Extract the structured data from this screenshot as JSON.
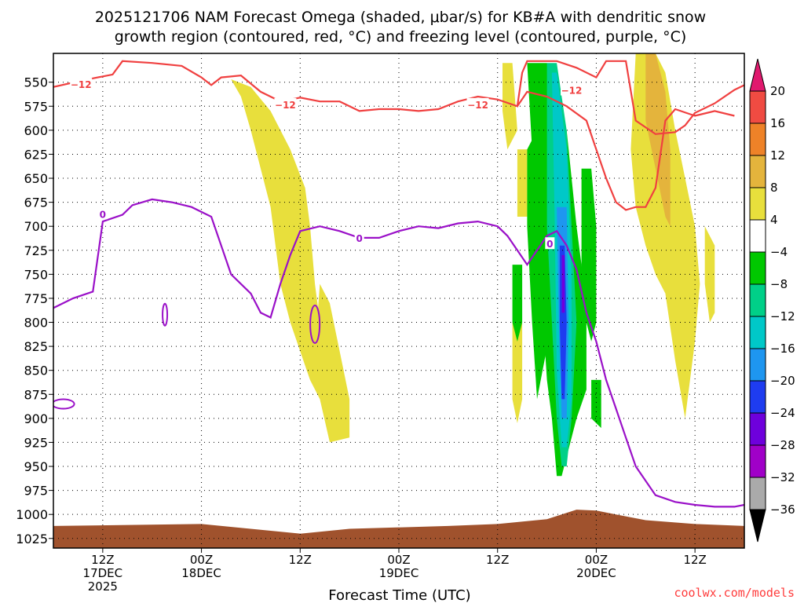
{
  "chart_data": {
    "type": "heatmap",
    "title_lines": [
      "2025121706 NAM Forecast Omega (shaded, μbar/s) for KB#A with dendritic snow",
      "growth region (contoured, red, °C) and freezing level (contoured, purple, °C)"
    ],
    "xlabel": "Forecast Time (UTC)",
    "credit": "coolwx.com/models",
    "xlim_hours": [
      -5,
      65
    ],
    "x_ticks": [
      {
        "h": 0,
        "lines": [
          "12Z",
          "17DEC",
          "2025"
        ]
      },
      {
        "h": 10,
        "lines": [
          "00Z",
          "18DEC"
        ]
      },
      {
        "h": 20,
        "lines": [
          "12Z"
        ]
      },
      {
        "h": 30,
        "lines": [
          "00Z",
          "19DEC"
        ]
      },
      {
        "h": 40,
        "lines": [
          "12Z"
        ]
      },
      {
        "h": 50,
        "lines": [
          "00Z",
          "20DEC"
        ]
      },
      {
        "h": 60,
        "lines": [
          "12Z"
        ]
      }
    ],
    "y_ticks_hpa": [
      550,
      575,
      600,
      625,
      650,
      675,
      700,
      725,
      750,
      775,
      800,
      825,
      850,
      875,
      900,
      925,
      950,
      975,
      1000,
      1025
    ],
    "ylim_hpa": [
      520,
      1035
    ],
    "colorbar": {
      "labels": [
        "20",
        "16",
        "12",
        "8",
        "4",
        "−4",
        "−8",
        "−12",
        "−16",
        "−20",
        "−24",
        "−28",
        "−32",
        "−36"
      ],
      "colors": [
        "#e0196e",
        "#f04b42",
        "#ee8228",
        "#e4b43c",
        "#e8df3c",
        "#ffffff",
        "#00c800",
        "#00d088",
        "#00c8c8",
        "#1e96f0",
        "#1e3cf0",
        "#6e00dc",
        "#a000c8",
        "#aaaaaa",
        "#000000"
      ]
    },
    "contour_labels": {
      "dgz": "−12",
      "freezing": "0"
    },
    "dgz_minus12_upper": [
      [
        -5,
        555
      ],
      [
        -2,
        548
      ],
      [
        1,
        542
      ],
      [
        2,
        528
      ],
      [
        5,
        530
      ],
      [
        8,
        533
      ],
      [
        10,
        545
      ],
      [
        11,
        553
      ],
      [
        12,
        545
      ],
      [
        14,
        543
      ],
      [
        16,
        560
      ],
      [
        18,
        570
      ],
      [
        20,
        566
      ],
      [
        22,
        570
      ],
      [
        24,
        570
      ],
      [
        26,
        580
      ],
      [
        28,
        578
      ],
      [
        30,
        578
      ],
      [
        32,
        580
      ],
      [
        34,
        578
      ],
      [
        36,
        570
      ],
      [
        38,
        565
      ],
      [
        40,
        568
      ],
      [
        42,
        575
      ],
      [
        42.5,
        540
      ],
      [
        43,
        528
      ],
      [
        46,
        528
      ],
      [
        48,
        535
      ],
      [
        50,
        545
      ],
      [
        51,
        528
      ],
      [
        53,
        528
      ],
      [
        54,
        590
      ],
      [
        56,
        604
      ],
      [
        58,
        602
      ],
      [
        59,
        595
      ],
      [
        60,
        582
      ],
      [
        62,
        572
      ],
      [
        64,
        558
      ],
      [
        65,
        553
      ]
    ],
    "dgz_minus12_lower": [
      [
        42,
        575
      ],
      [
        43,
        560
      ],
      [
        45,
        565
      ],
      [
        47,
        575
      ],
      [
        49,
        590
      ],
      [
        50,
        620
      ],
      [
        51,
        650
      ],
      [
        52,
        675
      ],
      [
        53,
        683
      ],
      [
        54,
        680
      ],
      [
        55,
        680
      ],
      [
        56,
        660
      ],
      [
        57,
        590
      ],
      [
        58,
        578
      ],
      [
        60,
        585
      ],
      [
        62,
        580
      ],
      [
        64,
        585
      ]
    ],
    "freezing_level": [
      [
        -5,
        785
      ],
      [
        -3,
        775
      ],
      [
        -1,
        768
      ],
      [
        0,
        695
      ],
      [
        2,
        688
      ],
      [
        3,
        678
      ],
      [
        5,
        672
      ],
      [
        7,
        675
      ],
      [
        9,
        680
      ],
      [
        11,
        690
      ],
      [
        12,
        720
      ],
      [
        13,
        750
      ],
      [
        15,
        770
      ],
      [
        16,
        790
      ],
      [
        17,
        795
      ],
      [
        18,
        760
      ],
      [
        19,
        730
      ],
      [
        20,
        705
      ],
      [
        22,
        700
      ],
      [
        24,
        705
      ],
      [
        26,
        712
      ],
      [
        28,
        712
      ],
      [
        30,
        705
      ],
      [
        32,
        700
      ],
      [
        34,
        702
      ],
      [
        36,
        697
      ],
      [
        38,
        695
      ],
      [
        40,
        700
      ],
      [
        41,
        710
      ],
      [
        42,
        725
      ],
      [
        43,
        740
      ],
      [
        44,
        725
      ],
      [
        45,
        710
      ],
      [
        46,
        705
      ],
      [
        47,
        720
      ],
      [
        48,
        745
      ],
      [
        49,
        790
      ],
      [
        50,
        820
      ],
      [
        51,
        860
      ],
      [
        52,
        890
      ],
      [
        53,
        920
      ],
      [
        54,
        950
      ],
      [
        56,
        980
      ],
      [
        58,
        987
      ],
      [
        60,
        990
      ],
      [
        62,
        992
      ],
      [
        64,
        992
      ],
      [
        65,
        990
      ]
    ],
    "omega_regions": [
      {
        "value": 6,
        "color": "#e8df3c",
        "poly": [
          [
            13,
            547
          ],
          [
            14,
            565
          ],
          [
            15,
            600
          ],
          [
            16,
            640
          ],
          [
            17,
            680
          ],
          [
            18,
            760
          ],
          [
            19,
            800
          ],
          [
            20,
            830
          ],
          [
            21,
            860
          ],
          [
            22,
            880
          ],
          [
            22.5,
            840
          ],
          [
            21.5,
            760
          ],
          [
            21,
            700
          ],
          [
            20.5,
            660
          ],
          [
            19,
            620
          ],
          [
            17,
            580
          ],
          [
            15,
            555
          ]
        ]
      },
      {
        "value": 6,
        "color": "#e8df3c",
        "poly": [
          [
            22,
            760
          ],
          [
            23,
            780
          ],
          [
            24,
            830
          ],
          [
            25,
            880
          ],
          [
            25,
            920
          ],
          [
            23,
            925
          ],
          [
            22,
            880
          ],
          [
            21.5,
            830
          ]
        ]
      },
      {
        "value": 6,
        "color": "#e8df3c",
        "poly": [
          [
            41.5,
            800
          ],
          [
            42.5,
            800
          ],
          [
            42.5,
            880
          ],
          [
            42,
            905
          ],
          [
            41.5,
            880
          ]
        ]
      },
      {
        "value": 6,
        "color": "#e8df3c",
        "poly": [
          [
            40.5,
            530
          ],
          [
            41.5,
            530
          ],
          [
            42,
            600
          ],
          [
            41,
            620
          ],
          [
            40.5,
            580
          ]
        ]
      },
      {
        "value": 6,
        "color": "#e8df3c",
        "poly": [
          [
            42,
            620
          ],
          [
            43,
            620
          ],
          [
            43,
            690
          ],
          [
            42,
            690
          ]
        ]
      },
      {
        "value": 6,
        "color": "#e8df3c",
        "poly": [
          [
            54,
            520
          ],
          [
            56,
            520
          ],
          [
            57,
            540
          ],
          [
            58,
            600
          ],
          [
            59,
            650
          ],
          [
            60,
            700
          ],
          [
            60.5,
            760
          ],
          [
            60,
            820
          ],
          [
            59,
            900
          ],
          [
            58,
            840
          ],
          [
            57,
            770
          ],
          [
            56,
            750
          ],
          [
            55,
            720
          ],
          [
            54,
            680
          ],
          [
            53.5,
            620
          ]
        ]
      },
      {
        "value": 6,
        "color": "#e8df3c",
        "poly": [
          [
            61,
            700
          ],
          [
            62,
            720
          ],
          [
            62,
            790
          ],
          [
            61.5,
            800
          ],
          [
            61,
            760
          ]
        ]
      },
      {
        "value": 10,
        "color": "#e4b43c",
        "poly": [
          [
            55,
            520
          ],
          [
            56,
            520
          ],
          [
            57,
            560
          ],
          [
            57.5,
            620
          ],
          [
            57.5,
            700
          ],
          [
            57,
            690
          ],
          [
            56,
            640
          ],
          [
            55,
            590
          ]
        ]
      },
      {
        "value": -6,
        "color": "#00c800",
        "poly": [
          [
            41.5,
            740
          ],
          [
            42.5,
            740
          ],
          [
            42.5,
            800
          ],
          [
            42,
            820
          ],
          [
            41.5,
            800
          ]
        ]
      },
      {
        "value": -6,
        "color": "#00c800",
        "poly": [
          [
            44,
            600
          ],
          [
            45,
            650
          ],
          [
            45.5,
            700
          ],
          [
            45.5,
            800
          ],
          [
            44,
            880
          ],
          [
            43.5,
            800
          ],
          [
            43,
            700
          ],
          [
            43,
            620
          ]
        ]
      },
      {
        "value": -6,
        "color": "#00c800",
        "poly": [
          [
            43,
            530
          ],
          [
            45,
            530
          ],
          [
            46,
            560
          ],
          [
            47,
            600
          ],
          [
            48,
            700
          ],
          [
            49,
            780
          ],
          [
            49,
            870
          ],
          [
            48,
            900
          ],
          [
            47,
            940
          ],
          [
            46.5,
            960
          ],
          [
            46,
            960
          ],
          [
            45.5,
            900
          ],
          [
            45,
            860
          ],
          [
            44.5,
            780
          ],
          [
            44,
            700
          ],
          [
            43.5,
            620
          ]
        ]
      },
      {
        "value": -6,
        "color": "#00c800",
        "poly": [
          [
            48.5,
            640
          ],
          [
            49.5,
            640
          ],
          [
            50,
            700
          ],
          [
            50,
            800
          ],
          [
            49.5,
            820
          ],
          [
            48.5,
            780
          ]
        ]
      },
      {
        "value": -6,
        "color": "#00c800",
        "poly": [
          [
            49.5,
            860
          ],
          [
            50.5,
            860
          ],
          [
            50.5,
            910
          ],
          [
            49.5,
            900
          ]
        ]
      },
      {
        "value": -10,
        "color": "#00d088",
        "poly": [
          [
            45,
            530
          ],
          [
            46,
            530
          ],
          [
            47,
            600
          ],
          [
            47.5,
            700
          ],
          [
            48,
            800
          ],
          [
            47.5,
            900
          ],
          [
            47,
            950
          ],
          [
            46.5,
            950
          ],
          [
            46,
            900
          ],
          [
            45.5,
            800
          ],
          [
            45,
            700
          ]
        ]
      },
      {
        "value": -14,
        "color": "#00c8c8",
        "poly": [
          [
            45.5,
            540
          ],
          [
            46,
            540
          ],
          [
            47,
            620
          ],
          [
            47.5,
            750
          ],
          [
            47.5,
            880
          ],
          [
            47,
            930
          ],
          [
            46.5,
            930
          ],
          [
            46,
            850
          ],
          [
            45.8,
            700
          ]
        ]
      },
      {
        "value": -18,
        "color": "#1e96f0",
        "poly": [
          [
            46,
            680
          ],
          [
            47,
            680
          ],
          [
            47.2,
            800
          ],
          [
            47,
            900
          ],
          [
            46.5,
            900
          ],
          [
            46.2,
            800
          ]
        ]
      },
      {
        "value": -22,
        "color": "#1e3cf0",
        "poly": [
          [
            46.3,
            720
          ],
          [
            46.8,
            720
          ],
          [
            47,
            800
          ],
          [
            46.8,
            880
          ],
          [
            46.5,
            880
          ],
          [
            46.3,
            800
          ]
        ]
      },
      {
        "value": -26,
        "color": "#6e00dc",
        "poly": [
          [
            46.5,
            730
          ],
          [
            46.8,
            730
          ],
          [
            46.8,
            790
          ],
          [
            46.5,
            790
          ]
        ]
      }
    ],
    "terrain": {
      "color": "#a0522d",
      "surface": [
        [
          -5,
          1012
        ],
        [
          10,
          1010
        ],
        [
          20,
          1020
        ],
        [
          25,
          1015
        ],
        [
          35,
          1012
        ],
        [
          40,
          1010
        ],
        [
          45,
          1005
        ],
        [
          48,
          995
        ],
        [
          50,
          996
        ],
        [
          52,
          1000
        ],
        [
          55,
          1006
        ],
        [
          60,
          1010
        ],
        [
          65,
          1012
        ]
      ]
    }
  }
}
